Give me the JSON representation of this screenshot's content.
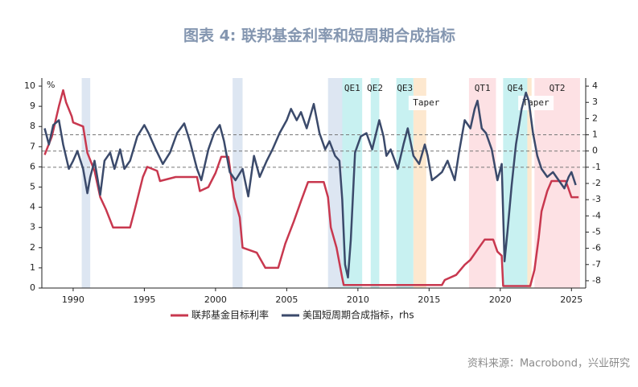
{
  "chart_data": {
    "type": "line",
    "title": "图表 4:   联邦基金利率和短周期合成指标",
    "y_unit": "%",
    "source": "资料来源：Macrobond，兴业研究",
    "xlim": [
      1987.8,
      2026
    ],
    "xticks": [
      1990,
      1995,
      2000,
      2005,
      2010,
      2015,
      2020,
      2025
    ],
    "ylim": [
      0,
      10.4
    ],
    "yticks": [
      0,
      1,
      2,
      3,
      4,
      5,
      6,
      7,
      8,
      9,
      10
    ],
    "y2lim": [
      -8.45,
      4.5
    ],
    "y2ticks": [
      -8,
      -7,
      -6,
      -5,
      -4,
      -3,
      -2,
      -1,
      0,
      1,
      2,
      3,
      4
    ],
    "reference_lines": [
      1,
      0,
      -1
    ],
    "shaded_regions": [
      {
        "start": 1990.6,
        "end": 1991.2,
        "color": "#dde6f2"
      },
      {
        "start": 2001.2,
        "end": 2001.9,
        "color": "#dde6f2"
      },
      {
        "start": 2007.9,
        "end": 2009.5,
        "color": "#dde6f2"
      },
      {
        "label": "QE1",
        "start": 2008.9,
        "end": 2010.3,
        "color": "#c8f1f1"
      },
      {
        "label": "QE2",
        "start": 2010.9,
        "end": 2011.5,
        "color": "#c8f1f1"
      },
      {
        "label": "QE3",
        "start": 2012.7,
        "end": 2013.9,
        "color": "#c8f1f1"
      },
      {
        "label": "Taper",
        "start": 2013.9,
        "end": 2014.8,
        "color": "#fde8cf"
      },
      {
        "label": "QT1",
        "start": 2017.8,
        "end": 2019.7,
        "color": "#fde1e4"
      },
      {
        "label": "QE4",
        "start": 2020.2,
        "end": 2021.9,
        "color": "#c8f1f1"
      },
      {
        "label": "Taper",
        "start": 2021.9,
        "end": 2022.2,
        "color": "#fde8cf"
      },
      {
        "label": "QT2",
        "start": 2022.4,
        "end": 2025.6,
        "color": "#fde1e4"
      }
    ],
    "series": [
      {
        "name": "联邦基金目标利率",
        "color": "#c8384f",
        "x": [
          1988.0,
          1988.5,
          1989.0,
          1989.3,
          1989.5,
          1989.9,
          1990.0,
          1990.7,
          1991.0,
          1991.5,
          1991.9,
          1992.3,
          1992.8,
          1994.0,
          1994.3,
          1994.9,
          1995.2,
          1995.9,
          1996.1,
          1997.2,
          1998.7,
          1998.9,
          1999.5,
          2000.0,
          2000.4,
          2000.9,
          2001.0,
          2001.3,
          2001.7,
          2001.9,
          2002.9,
          2003.5,
          2004.4,
          2004.9,
          2005.5,
          2006.0,
          2006.5,
          2007.6,
          2007.9,
          2008.1,
          2008.5,
          2008.9,
          2009.0,
          2015.9,
          2016.1,
          2016.9,
          2017.5,
          2017.9,
          2018.4,
          2018.9,
          2019.5,
          2019.8,
          2020.1,
          2020.2,
          2022.1,
          2022.4,
          2022.7,
          2022.9,
          2023.3,
          2023.6,
          2024.6,
          2024.8,
          2025.0,
          2025.5
        ],
        "values": [
          6.6,
          7.5,
          9.0,
          9.8,
          9.2,
          8.5,
          8.2,
          8.0,
          6.7,
          5.8,
          4.5,
          3.9,
          3.0,
          3.0,
          3.8,
          5.5,
          6.0,
          5.8,
          5.3,
          5.5,
          5.5,
          4.8,
          5.0,
          5.7,
          6.5,
          6.5,
          6.0,
          4.5,
          3.5,
          2.0,
          1.75,
          1.0,
          1.0,
          2.2,
          3.3,
          4.3,
          5.25,
          5.25,
          4.5,
          3.0,
          2.0,
          0.5,
          0.15,
          0.15,
          0.4,
          0.65,
          1.15,
          1.4,
          1.9,
          2.4,
          2.4,
          1.8,
          1.6,
          0.1,
          0.1,
          0.9,
          2.5,
          3.8,
          4.8,
          5.3,
          5.3,
          4.9,
          4.5,
          4.5
        ]
      },
      {
        "name": "美国短周期合成指标，rhs",
        "color": "#3b4a6b",
        "axis": "y2",
        "x": [
          1988.0,
          1988.3,
          1988.6,
          1989.0,
          1989.3,
          1989.7,
          1990.0,
          1990.3,
          1990.7,
          1991.0,
          1991.2,
          1991.5,
          1991.9,
          1992.2,
          1992.6,
          1992.9,
          1993.3,
          1993.6,
          1994.0,
          1994.5,
          1995.0,
          1995.3,
          1995.8,
          1996.3,
          1996.8,
          1997.3,
          1997.8,
          1998.2,
          1998.7,
          1999.0,
          1999.5,
          1999.9,
          2000.3,
          2000.6,
          2001.0,
          2001.4,
          2001.9,
          2002.3,
          2002.7,
          2003.1,
          2003.6,
          2004.0,
          2004.5,
          2005.0,
          2005.3,
          2005.7,
          2006.0,
          2006.4,
          2006.9,
          2007.3,
          2007.7,
          2008.0,
          2008.4,
          2008.7,
          2008.9,
          2009.1,
          2009.3,
          2009.5,
          2009.8,
          2010.2,
          2010.6,
          2011.0,
          2011.5,
          2011.8,
          2012.0,
          2012.3,
          2012.8,
          2013.2,
          2013.5,
          2013.9,
          2014.3,
          2014.7,
          2014.9,
          2015.2,
          2015.5,
          2015.9,
          2016.3,
          2016.8,
          2017.1,
          2017.5,
          2017.9,
          2018.2,
          2018.4,
          2018.7,
          2019.0,
          2019.4,
          2019.8,
          2020.1,
          2020.3,
          2020.5,
          2020.8,
          2021.1,
          2021.5,
          2021.8,
          2022.0,
          2022.3,
          2022.6,
          2022.9,
          2023.3,
          2023.7,
          2024.1,
          2024.5,
          2024.8,
          2025.0,
          2025.3
        ],
        "values": [
          1.4,
          0.4,
          1.6,
          1.9,
          0.4,
          -1.1,
          -0.6,
          0,
          -1.1,
          -2.6,
          -1.6,
          -0.6,
          -2.7,
          -0.6,
          -0.1,
          -1.1,
          0.1,
          -1.1,
          -0.6,
          0.9,
          1.6,
          1.1,
          0.1,
          -0.8,
          -0.1,
          1.1,
          1.7,
          0.6,
          -1.1,
          -1.8,
          0.1,
          1.1,
          1.6,
          0.6,
          -1.3,
          -1.8,
          -1.1,
          -2.8,
          -0.3,
          -1.6,
          -0.6,
          0.1,
          1.1,
          1.9,
          2.6,
          1.9,
          2.4,
          1.4,
          2.9,
          1.1,
          0.1,
          0.6,
          -0.3,
          -0.6,
          -3.0,
          -7.0,
          -7.8,
          -5.5,
          -0.1,
          0.9,
          1.1,
          0.1,
          1.9,
          0.9,
          -0.3,
          0.1,
          -1.1,
          0.4,
          1.4,
          -0.3,
          -0.8,
          0.4,
          -0.3,
          -1.8,
          -1.6,
          -1.3,
          -0.6,
          -1.8,
          -0.1,
          1.9,
          1.4,
          2.6,
          3.1,
          1.4,
          1.1,
          0.1,
          -1.8,
          -0.8,
          -6.8,
          -5.0,
          -2.1,
          0.4,
          2.6,
          3.6,
          3.1,
          1.1,
          -0.3,
          -1.1,
          -1.6,
          -1.3,
          -1.8,
          -2.3,
          -1.6,
          -1.3,
          -2.1
        ]
      }
    ]
  }
}
